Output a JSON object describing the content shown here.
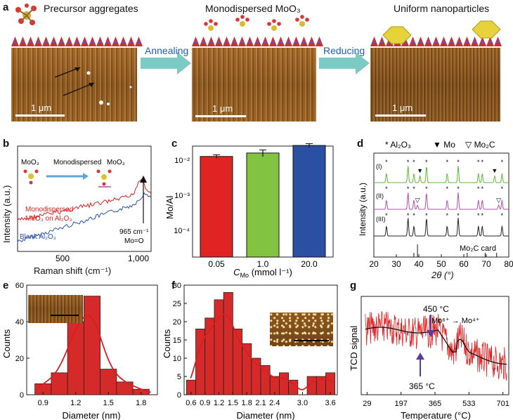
{
  "panel_a": {
    "label": "a",
    "titles": [
      "Precursor aggregates",
      "Monodispersed MoO₃",
      "Uniform nanoparticles"
    ],
    "scalebar": "1 μm",
    "arrows": [
      "Annealing",
      "Reducing"
    ]
  },
  "panel_labels": {
    "b": "b",
    "c": "c",
    "d": "d",
    "e": "e",
    "f": "f",
    "g": "g"
  },
  "panel_b": {
    "ylabel": "Intensity (a.u.)",
    "xlabel": "Raman shift (cm⁻¹)",
    "xticks": [
      "500",
      "1,000"
    ],
    "inset_left": "MoO₃",
    "inset_mid": "Monodispersed",
    "inset_right": "MoO₃",
    "series_red": "Monodispersed",
    "series_red2": "MoO₃ on Al₂O₃",
    "series_blue": "Blank Al₂O₃",
    "annot1": "965 cm⁻¹",
    "annot2": "Mo=O",
    "colors": {
      "red": "#d62020",
      "blue": "#2a4fa8"
    }
  },
  "chart_data": [
    {
      "id": "c",
      "type": "bar",
      "categories": [
        "0.05",
        "1.0",
        "20.0"
      ],
      "values": [
        0.0088,
        0.0105,
        0.0155
      ],
      "errors": [
        0.0008,
        0.0018,
        0.0015
      ],
      "colors": [
        "#e02424",
        "#82c341",
        "#2b4fa3"
      ],
      "ylabel": "Mo/Al",
      "xlabel": "C",
      "xlabel_sub": "Mo",
      "xlabel_unit": " (mmol l⁻¹)",
      "yscale": "log",
      "ylim": [
        5e-05,
        0.015
      ],
      "yticks": [
        "10⁻²",
        "10⁻³",
        "10⁻⁴"
      ]
    },
    {
      "id": "d",
      "type": "line",
      "legend": [
        "* Al₂O₃",
        "▼ Mo",
        "▽ Mo₂C"
      ],
      "series": [
        {
          "name": "(I)",
          "color": "#5fb834"
        },
        {
          "name": "(II)",
          "color": "#b24fb0"
        },
        {
          "name": "(III)",
          "color": "#222222"
        }
      ],
      "ref_label": "Mo₂C card",
      "ylabel": "Intensity (a.u.)",
      "xlabel": "2θ (°)",
      "xlim": [
        20,
        80
      ],
      "xticks": [
        "20",
        "30",
        "40",
        "50",
        "60",
        "70",
        "80"
      ],
      "al2o3_peaks": [
        25.6,
        35.2,
        37.8,
        43.4,
        52.6,
        57.5,
        66.5,
        68.2,
        77
      ],
      "mo_peaks": [
        40.5,
        73.7
      ],
      "mo2c_peaks": [
        39.4,
        75.5
      ]
    },
    {
      "id": "e",
      "type": "bar",
      "categories": [
        "0.9",
        "1.05",
        "1.2",
        "1.35",
        "1.5",
        "1.65",
        "1.8"
      ],
      "x": [
        0.9,
        1.05,
        1.2,
        1.35,
        1.5,
        1.65,
        1.8
      ],
      "values": [
        6,
        12,
        40,
        54,
        14,
        7,
        3
      ],
      "ylabel": "Counts",
      "xlabel": "Diameter (nm)",
      "xticks": [
        "0.9",
        "1.2",
        "1.5",
        "1.8"
      ],
      "yticks": [
        "0",
        "20",
        "40",
        "60"
      ],
      "ylim": [
        0,
        60
      ],
      "xlim": [
        0.75,
        1.95
      ]
    },
    {
      "id": "f",
      "type": "bar",
      "x": [
        0.6,
        0.8,
        1.0,
        1.2,
        1.4,
        1.6,
        1.8,
        2.0,
        2.2,
        2.4,
        2.6,
        2.8,
        3.0,
        3.2,
        3.4,
        3.6
      ],
      "values": [
        4,
        18,
        21,
        26,
        28,
        18,
        14,
        10,
        8,
        5,
        6,
        4,
        0,
        5,
        5,
        6
      ],
      "ylabel": "Counts",
      "xlabel": "Diameter (nm)",
      "xticks": [
        "0.6",
        "0.9",
        "1.2",
        "1.5",
        "1.8",
        "2.1",
        "2.4",
        "3.0",
        "3.6"
      ],
      "yticks": [
        "0",
        "5",
        "10",
        "15",
        "20",
        "25",
        "30"
      ],
      "ylim": [
        0,
        30
      ],
      "xlim": [
        0.45,
        3.75
      ]
    },
    {
      "id": "g",
      "type": "line",
      "ylabel": "TCD signal",
      "xlabel": "Temperature (°C)",
      "xticks": [
        "29",
        "197",
        "365",
        "533",
        "701"
      ],
      "xlim": [
        0,
        730
      ],
      "annot_450": "450 °C",
      "annot_365": "365 °C",
      "annot_mo": "Mo⁶⁺ → Mo⁴⁺",
      "colors": {
        "noise": "#e02020",
        "fit": "#111111",
        "arrow": "#5a3a9a"
      }
    }
  ]
}
